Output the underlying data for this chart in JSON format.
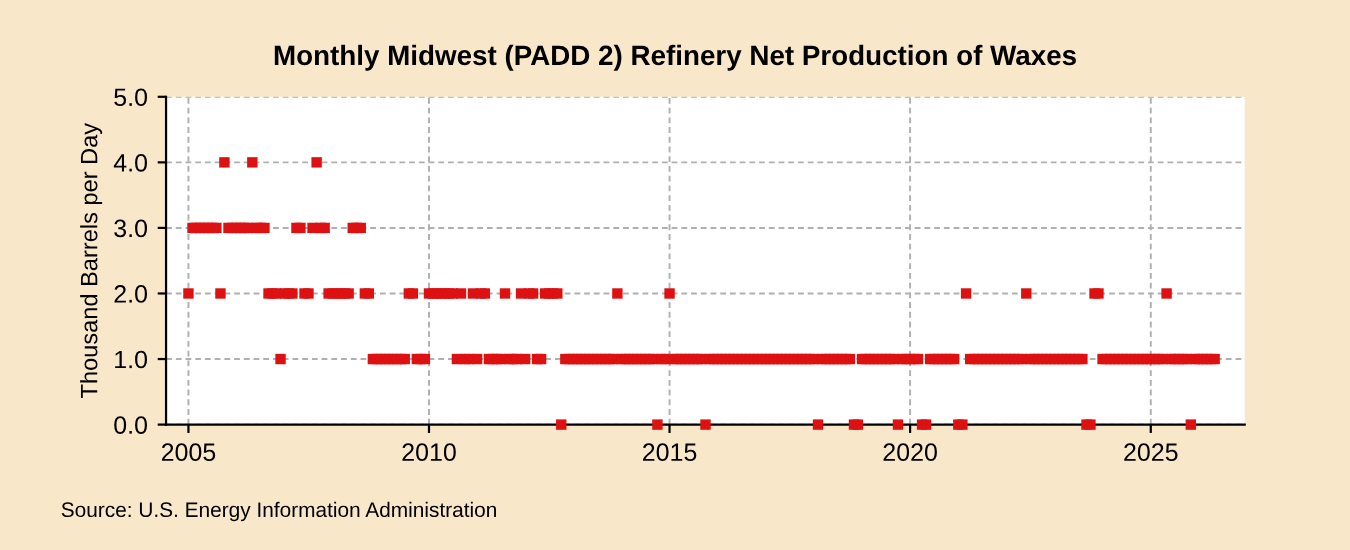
{
  "chart_data": {
    "type": "scatter",
    "title": "Monthly Midwest (PADD 2) Refinery Net Production of Waxes",
    "ylabel": "Thousand Barrels per Day",
    "annotations": [
      "Source: U.S. Energy Information Administration"
    ],
    "x": [
      "2005-01",
      "2005-02",
      "2005-03",
      "2005-04",
      "2005-05",
      "2005-06",
      "2005-07",
      "2005-08",
      "2005-09",
      "2005-10",
      "2005-11",
      "2005-12",
      "2006-01",
      "2006-02",
      "2006-03",
      "2006-04",
      "2006-05",
      "2006-06",
      "2006-07",
      "2006-08",
      "2006-09",
      "2006-10",
      "2006-11",
      "2006-12",
      "2007-01",
      "2007-02",
      "2007-03",
      "2007-04",
      "2007-05",
      "2007-06",
      "2007-07",
      "2007-08",
      "2007-09",
      "2007-10",
      "2007-11",
      "2007-12",
      "2008-01",
      "2008-02",
      "2008-03",
      "2008-04",
      "2008-05",
      "2008-06",
      "2008-07",
      "2008-08",
      "2008-09",
      "2008-10",
      "2008-11",
      "2008-12",
      "2009-01",
      "2009-02",
      "2009-03",
      "2009-04",
      "2009-05",
      "2009-06",
      "2009-07",
      "2009-08",
      "2009-09",
      "2009-10",
      "2009-11",
      "2009-12",
      "2010-01",
      "2010-02",
      "2010-03",
      "2010-04",
      "2010-05",
      "2010-06",
      "2010-07",
      "2010-08",
      "2010-09",
      "2010-10",
      "2010-11",
      "2010-12",
      "2011-01",
      "2011-02",
      "2011-03",
      "2011-04",
      "2011-05",
      "2011-06",
      "2011-07",
      "2011-08",
      "2011-09",
      "2011-10",
      "2011-11",
      "2011-12",
      "2012-01",
      "2012-02",
      "2012-03",
      "2012-04",
      "2012-05",
      "2012-06",
      "2012-07",
      "2012-08",
      "2012-09",
      "2012-10",
      "2012-11",
      "2012-12",
      "2013-01",
      "2013-02",
      "2013-03",
      "2013-04",
      "2013-05",
      "2013-06",
      "2013-07",
      "2013-08",
      "2013-09",
      "2013-10",
      "2013-11",
      "2013-12",
      "2014-01",
      "2014-02",
      "2014-03",
      "2014-04",
      "2014-05",
      "2014-06",
      "2014-07",
      "2014-08",
      "2014-09",
      "2014-10",
      "2014-11",
      "2014-12",
      "2015-01",
      "2015-02",
      "2015-03",
      "2015-04",
      "2015-05",
      "2015-06",
      "2015-07",
      "2015-08",
      "2015-09",
      "2015-10",
      "2015-11",
      "2015-12",
      "2016-01",
      "2016-02",
      "2016-03",
      "2016-04",
      "2016-05",
      "2016-06",
      "2016-07",
      "2016-08",
      "2016-09",
      "2016-10",
      "2016-11",
      "2016-12",
      "2017-01",
      "2017-02",
      "2017-03",
      "2017-04",
      "2017-05",
      "2017-06",
      "2017-07",
      "2017-08",
      "2017-09",
      "2017-10",
      "2017-11",
      "2017-12",
      "2018-01",
      "2018-02",
      "2018-03",
      "2018-04",
      "2018-05",
      "2018-06",
      "2018-07",
      "2018-08",
      "2018-09",
      "2018-10",
      "2018-11",
      "2018-12",
      "2019-01",
      "2019-02",
      "2019-03",
      "2019-04",
      "2019-05",
      "2019-06",
      "2019-07",
      "2019-08",
      "2019-09",
      "2019-10",
      "2019-11",
      "2019-12",
      "2020-01",
      "2020-02",
      "2020-03",
      "2020-04",
      "2020-05",
      "2020-06",
      "2020-07",
      "2020-08",
      "2020-09",
      "2020-10",
      "2020-11",
      "2020-12",
      "2021-01",
      "2021-02",
      "2021-03",
      "2021-04",
      "2021-05",
      "2021-06",
      "2021-07",
      "2021-08",
      "2021-09",
      "2021-10",
      "2021-11",
      "2021-12",
      "2022-01",
      "2022-02",
      "2022-03",
      "2022-04",
      "2022-05",
      "2022-06",
      "2022-07",
      "2022-08",
      "2022-09",
      "2022-10",
      "2022-11",
      "2022-12",
      "2023-01",
      "2023-02",
      "2023-03",
      "2023-04",
      "2023-05",
      "2023-06",
      "2023-07",
      "2023-08",
      "2023-09",
      "2023-10",
      "2023-11",
      "2023-12",
      "2024-01",
      "2024-02",
      "2024-03",
      "2024-04",
      "2024-05",
      "2024-06",
      "2024-07",
      "2024-08",
      "2024-09",
      "2024-10",
      "2024-11",
      "2024-12",
      "2025-01",
      "2025-02",
      "2025-03",
      "2025-04",
      "2025-05",
      "2025-06",
      "2025-07",
      "2025-08",
      "2025-09",
      "2025-10",
      "2025-11",
      "2025-12",
      "2026-01",
      "2026-02",
      "2026-03",
      "2026-04",
      "2026-05"
    ],
    "series": [
      {
        "color": "#dd1111",
        "values": [
          2,
          3,
          3,
          3,
          3,
          3,
          3,
          3,
          2,
          4,
          3,
          3,
          3,
          3,
          3,
          3,
          4,
          3,
          3,
          3,
          2,
          2,
          2,
          1,
          2,
          2,
          2,
          3,
          3,
          2,
          2,
          3,
          4,
          3,
          3,
          2,
          2,
          2,
          2,
          2,
          2,
          3,
          3,
          3,
          2,
          2,
          1,
          1,
          1,
          1,
          1,
          1,
          1,
          1,
          1,
          2,
          2,
          1,
          1,
          1,
          2,
          2,
          2,
          2,
          2,
          2,
          2,
          1,
          2,
          1,
          1,
          2,
          1,
          2,
          2,
          1,
          1,
          1,
          1,
          2,
          1,
          1,
          1,
          2,
          1,
          2,
          2,
          1,
          1,
          2,
          2,
          2,
          2,
          0,
          1,
          1,
          1,
          1,
          1,
          1,
          1,
          1,
          1,
          1,
          1,
          1,
          1,
          2,
          1,
          1,
          1,
          1,
          1,
          1,
          1,
          1,
          1,
          0,
          1,
          1,
          2,
          1,
          1,
          1,
          1,
          1,
          1,
          1,
          1,
          0,
          1,
          1,
          1,
          1,
          1,
          1,
          1,
          1,
          1,
          1,
          1,
          1,
          1,
          1,
          1,
          1,
          1,
          1,
          1,
          1,
          1,
          1,
          1,
          1,
          1,
          1,
          1,
          0,
          1,
          1,
          1,
          1,
          1,
          1,
          1,
          1,
          0,
          0,
          1,
          1,
          1,
          1,
          1,
          1,
          1,
          1,
          1,
          0,
          1,
          1,
          1,
          1,
          1,
          0,
          0,
          1,
          1,
          1,
          1,
          1,
          1,
          1,
          0,
          0,
          2,
          1,
          1,
          1,
          1,
          1,
          1,
          1,
          1,
          1,
          1,
          1,
          1,
          1,
          1,
          2,
          1,
          1,
          1,
          1,
          1,
          1,
          1,
          1,
          1,
          1,
          1,
          1,
          1,
          1,
          0,
          0,
          2,
          2,
          1,
          1,
          1,
          1,
          1,
          1,
          1,
          1,
          1,
          1,
          1,
          1,
          1,
          1,
          1,
          1,
          2,
          1,
          1,
          1,
          1,
          1,
          0,
          1,
          1,
          1,
          1,
          1,
          1
        ]
      }
    ],
    "marker": "square",
    "xlim": [
      "2004-07-15",
      "2026-12-15"
    ],
    "xticks": [
      {
        "value": "2005",
        "label": "2005"
      },
      {
        "value": "2010",
        "label": "2010"
      },
      {
        "value": "2015",
        "label": "2015"
      },
      {
        "value": "2020",
        "label": "2020"
      },
      {
        "value": "2025",
        "label": "2025"
      }
    ],
    "ylim": [
      0,
      5
    ],
    "yticks": [
      {
        "value": 0,
        "label": "0.0"
      },
      {
        "value": 1,
        "label": "1.0"
      },
      {
        "value": 2,
        "label": "2.0"
      },
      {
        "value": 3,
        "label": "3.0"
      },
      {
        "value": 4,
        "label": "4.0"
      },
      {
        "value": 5,
        "label": "5.0"
      }
    ],
    "grid": true
  }
}
